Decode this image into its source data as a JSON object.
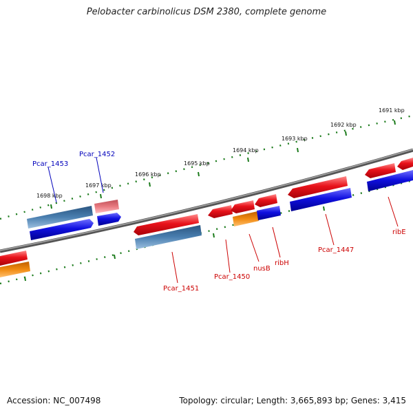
{
  "title": "Pelobacter carbinolicus DSM 2380, complete genome",
  "footer": {
    "accession": "Accession: NC_007498",
    "summary": "Topology: circular; Length: 3,665,893 bp; Genes: 3,415"
  },
  "scale_labels": [
    "1691 kbp",
    "1692 kbp",
    "1693 kbp",
    "1694 kbp",
    "1695 kbp",
    "1696 kbp",
    "1697 kbp",
    "1698 kbp"
  ],
  "gene_labels": {
    "pcar_1453": "Pcar_1453",
    "pcar_1452": "Pcar_1452",
    "pcar_1451": "Pcar_1451",
    "pcar_1450": "Pcar_1450",
    "nusb": "nusB",
    "ribh": "ribH",
    "pcar_1447": "Pcar_1447",
    "ribe": "ribE"
  },
  "colors": {
    "red": "#e8121a",
    "blue": "#1010e0",
    "steel": "#4a7fb0",
    "orange": "#f08a10",
    "pink": "#e87a80",
    "backbone": "#7a7a7a",
    "ticks": "#1a7a1a",
    "label_red": "#cc0000",
    "label_blue": "#0000bb"
  }
}
